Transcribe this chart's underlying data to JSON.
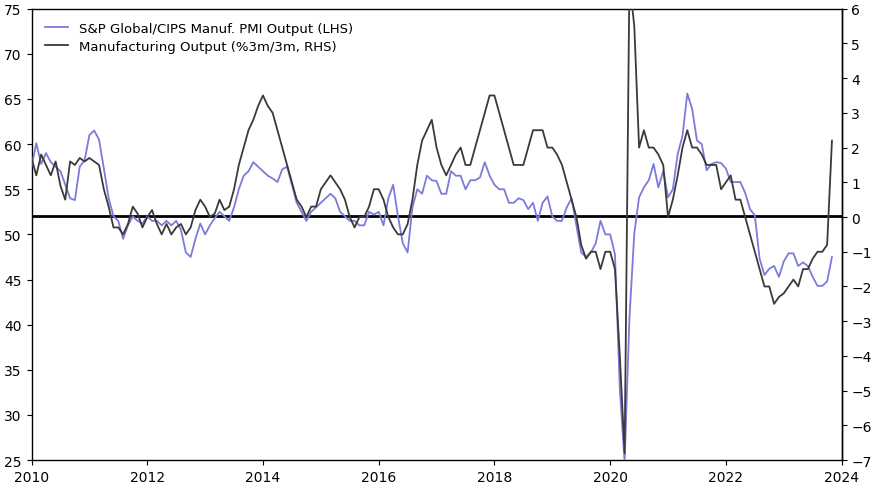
{
  "lhs_label": "S&P Global/CIPS Manuf. PMI Output (LHS)",
  "rhs_label": "Manufacturing Output (%3m/3m, RHS)",
  "lhs_color": "#7b7bdb",
  "rhs_color": "#3a3a3a",
  "hline_lhs": 52.0,
  "ylim_lhs": [
    25,
    75
  ],
  "ylim_rhs": [
    -7,
    6
  ],
  "yticks_lhs": [
    25,
    30,
    35,
    40,
    45,
    50,
    55,
    60,
    65,
    70,
    75
  ],
  "yticks_rhs": [
    -7,
    -6,
    -5,
    -4,
    -3,
    -2,
    -1,
    0,
    1,
    2,
    3,
    4,
    5,
    6
  ],
  "xlim": [
    2010.0,
    2024.0
  ],
  "xticks": [
    2010,
    2012,
    2014,
    2016,
    2018,
    2020,
    2022,
    2024
  ],
  "background_color": "#ffffff",
  "lhs_linewidth": 1.3,
  "rhs_linewidth": 1.3,
  "hline_linewidth": 2.0,
  "pmi_dates": [
    2010.0,
    2010.083,
    2010.167,
    2010.25,
    2010.333,
    2010.417,
    2010.5,
    2010.583,
    2010.667,
    2010.75,
    2010.833,
    2010.917,
    2011.0,
    2011.083,
    2011.167,
    2011.25,
    2011.333,
    2011.417,
    2011.5,
    2011.583,
    2011.667,
    2011.75,
    2011.833,
    2011.917,
    2012.0,
    2012.083,
    2012.167,
    2012.25,
    2012.333,
    2012.417,
    2012.5,
    2012.583,
    2012.667,
    2012.75,
    2012.833,
    2012.917,
    2013.0,
    2013.083,
    2013.167,
    2013.25,
    2013.333,
    2013.417,
    2013.5,
    2013.583,
    2013.667,
    2013.75,
    2013.833,
    2013.917,
    2014.0,
    2014.083,
    2014.167,
    2014.25,
    2014.333,
    2014.417,
    2014.5,
    2014.583,
    2014.667,
    2014.75,
    2014.833,
    2014.917,
    2015.0,
    2015.083,
    2015.167,
    2015.25,
    2015.333,
    2015.417,
    2015.5,
    2015.583,
    2015.667,
    2015.75,
    2015.833,
    2015.917,
    2016.0,
    2016.083,
    2016.167,
    2016.25,
    2016.333,
    2016.417,
    2016.5,
    2016.583,
    2016.667,
    2016.75,
    2016.833,
    2016.917,
    2017.0,
    2017.083,
    2017.167,
    2017.25,
    2017.333,
    2017.417,
    2017.5,
    2017.583,
    2017.667,
    2017.75,
    2017.833,
    2017.917,
    2018.0,
    2018.083,
    2018.167,
    2018.25,
    2018.333,
    2018.417,
    2018.5,
    2018.583,
    2018.667,
    2018.75,
    2018.833,
    2018.917,
    2019.0,
    2019.083,
    2019.167,
    2019.25,
    2019.333,
    2019.417,
    2019.5,
    2019.583,
    2019.667,
    2019.75,
    2019.833,
    2019.917,
    2020.0,
    2020.083,
    2020.167,
    2020.25,
    2020.333,
    2020.417,
    2020.5,
    2020.583,
    2020.667,
    2020.75,
    2020.833,
    2020.917,
    2021.0,
    2021.083,
    2021.167,
    2021.25,
    2021.333,
    2021.417,
    2021.5,
    2021.583,
    2021.667,
    2021.75,
    2021.833,
    2021.917,
    2022.0,
    2022.083,
    2022.167,
    2022.25,
    2022.333,
    2022.417,
    2022.5,
    2022.583,
    2022.667,
    2022.75,
    2022.833,
    2022.917,
    2023.0,
    2023.083,
    2023.167,
    2023.25,
    2023.333,
    2023.417,
    2023.5,
    2023.583,
    2023.667,
    2023.75,
    2023.833
  ],
  "pmi_values": [
    57.5,
    60.1,
    57.8,
    59.0,
    58.0,
    57.5,
    57.0,
    55.5,
    54.0,
    53.8,
    57.5,
    58.2,
    61.0,
    61.5,
    60.5,
    57.3,
    54.0,
    52.0,
    51.5,
    49.5,
    51.0,
    52.0,
    51.5,
    51.2,
    52.0,
    51.5,
    51.5,
    51.0,
    51.5,
    51.0,
    51.5,
    50.5,
    48.0,
    47.5,
    49.5,
    51.2,
    50.0,
    51.0,
    51.8,
    52.5,
    52.0,
    51.5,
    53.0,
    55.0,
    56.5,
    57.0,
    58.0,
    57.5,
    57.0,
    56.5,
    56.2,
    55.8,
    57.2,
    57.5,
    55.5,
    53.5,
    52.5,
    51.5,
    52.5,
    53.0,
    53.5,
    54.0,
    54.5,
    54.0,
    52.5,
    52.0,
    51.5,
    51.5,
    51.0,
    51.0,
    52.5,
    52.2,
    52.5,
    51.0,
    54.0,
    55.5,
    52.0,
    49.0,
    48.0,
    53.0,
    55.0,
    54.5,
    56.5,
    56.0,
    55.9,
    54.5,
    54.5,
    57.0,
    56.5,
    56.5,
    55.0,
    56.0,
    56.0,
    56.3,
    58.0,
    56.5,
    55.5,
    55.0,
    55.0,
    53.5,
    53.5,
    54.0,
    53.8,
    52.8,
    53.5,
    51.5,
    53.5,
    54.2,
    52.0,
    51.5,
    51.5,
    53.0,
    54.0,
    51.0,
    48.0,
    47.5,
    48.0,
    49.0,
    51.5,
    50.0,
    50.0,
    47.8,
    32.9,
    24.8,
    40.7,
    50.1,
    54.1,
    55.2,
    56.0,
    57.8,
    55.2,
    57.0,
    54.1,
    55.0,
    58.9,
    60.9,
    65.6,
    63.9,
    60.4,
    60.0,
    57.1,
    57.8,
    58.0,
    57.9,
    57.3,
    55.8,
    55.8,
    55.8,
    54.6,
    52.8,
    52.1,
    47.3,
    45.5,
    46.2,
    46.5,
    45.3,
    47.0,
    47.9,
    47.9,
    46.5,
    46.9,
    46.5,
    45.3,
    44.3,
    44.3,
    44.8,
    47.5
  ],
  "mfg_dates": [
    2010.0,
    2010.083,
    2010.167,
    2010.25,
    2010.333,
    2010.417,
    2010.5,
    2010.583,
    2010.667,
    2010.75,
    2010.833,
    2010.917,
    2011.0,
    2011.083,
    2011.167,
    2011.25,
    2011.333,
    2011.417,
    2011.5,
    2011.583,
    2011.667,
    2011.75,
    2011.833,
    2011.917,
    2012.0,
    2012.083,
    2012.167,
    2012.25,
    2012.333,
    2012.417,
    2012.5,
    2012.583,
    2012.667,
    2012.75,
    2012.833,
    2012.917,
    2013.0,
    2013.083,
    2013.167,
    2013.25,
    2013.333,
    2013.417,
    2013.5,
    2013.583,
    2013.667,
    2013.75,
    2013.833,
    2013.917,
    2014.0,
    2014.083,
    2014.167,
    2014.25,
    2014.333,
    2014.417,
    2014.5,
    2014.583,
    2014.667,
    2014.75,
    2014.833,
    2014.917,
    2015.0,
    2015.083,
    2015.167,
    2015.25,
    2015.333,
    2015.417,
    2015.5,
    2015.583,
    2015.667,
    2015.75,
    2015.833,
    2015.917,
    2016.0,
    2016.083,
    2016.167,
    2016.25,
    2016.333,
    2016.417,
    2016.5,
    2016.583,
    2016.667,
    2016.75,
    2016.833,
    2016.917,
    2017.0,
    2017.083,
    2017.167,
    2017.25,
    2017.333,
    2017.417,
    2017.5,
    2017.583,
    2017.667,
    2017.75,
    2017.833,
    2017.917,
    2018.0,
    2018.083,
    2018.167,
    2018.25,
    2018.333,
    2018.417,
    2018.5,
    2018.583,
    2018.667,
    2018.75,
    2018.833,
    2018.917,
    2019.0,
    2019.083,
    2019.167,
    2019.25,
    2019.333,
    2019.417,
    2019.5,
    2019.583,
    2019.667,
    2019.75,
    2019.833,
    2019.917,
    2020.0,
    2020.083,
    2020.167,
    2020.25,
    2020.333,
    2020.417,
    2020.5,
    2020.583,
    2020.667,
    2020.75,
    2020.833,
    2020.917,
    2021.0,
    2021.083,
    2021.167,
    2021.25,
    2021.333,
    2021.417,
    2021.5,
    2021.583,
    2021.667,
    2021.75,
    2021.833,
    2021.917,
    2022.0,
    2022.083,
    2022.167,
    2022.25,
    2022.333,
    2022.417,
    2022.5,
    2022.583,
    2022.667,
    2022.75,
    2022.833,
    2022.917,
    2023.0,
    2023.083,
    2023.167,
    2023.25,
    2023.333,
    2023.417,
    2023.5,
    2023.583,
    2023.667,
    2023.75,
    2023.833
  ],
  "mfg_values": [
    1.7,
    1.2,
    1.8,
    1.5,
    1.2,
    1.6,
    0.9,
    0.5,
    1.6,
    1.5,
    1.7,
    1.6,
    1.7,
    1.6,
    1.5,
    0.8,
    0.3,
    -0.3,
    -0.3,
    -0.5,
    -0.2,
    0.3,
    0.1,
    -0.3,
    0.0,
    0.2,
    -0.2,
    -0.5,
    -0.2,
    -0.5,
    -0.3,
    -0.2,
    -0.5,
    -0.3,
    0.2,
    0.5,
    0.3,
    0.0,
    0.1,
    0.5,
    0.2,
    0.3,
    0.8,
    1.5,
    2.0,
    2.5,
    2.8,
    3.2,
    3.5,
    3.2,
    3.0,
    2.5,
    2.0,
    1.5,
    1.0,
    0.5,
    0.3,
    0.0,
    0.3,
    0.3,
    0.8,
    1.0,
    1.2,
    1.0,
    0.8,
    0.5,
    0.0,
    -0.3,
    0.0,
    0.0,
    0.3,
    0.8,
    0.8,
    0.5,
    0.0,
    -0.3,
    -0.5,
    -0.5,
    -0.2,
    0.5,
    1.5,
    2.2,
    2.5,
    2.8,
    2.0,
    1.5,
    1.2,
    1.5,
    1.8,
    2.0,
    1.5,
    1.5,
    2.0,
    2.5,
    3.0,
    3.5,
    3.5,
    3.0,
    2.5,
    2.0,
    1.5,
    1.5,
    1.5,
    2.0,
    2.5,
    2.5,
    2.5,
    2.0,
    2.0,
    1.8,
    1.5,
    1.0,
    0.5,
    0.0,
    -0.8,
    -1.2,
    -1.0,
    -1.0,
    -1.5,
    -1.0,
    -1.0,
    -1.5,
    -4.0,
    -6.8,
    6.8,
    5.5,
    2.0,
    2.5,
    2.0,
    2.0,
    1.8,
    1.5,
    0.0,
    0.5,
    1.2,
    2.0,
    2.5,
    2.0,
    2.0,
    1.8,
    1.5,
    1.5,
    1.5,
    0.8,
    1.0,
    1.2,
    0.5,
    0.5,
    0.0,
    -0.5,
    -1.0,
    -1.5,
    -2.0,
    -2.0,
    -2.5,
    -2.3,
    -2.2,
    -2.0,
    -1.8,
    -2.0,
    -1.5,
    -1.5,
    -1.2,
    -1.0,
    -1.0,
    -0.8,
    2.2
  ]
}
